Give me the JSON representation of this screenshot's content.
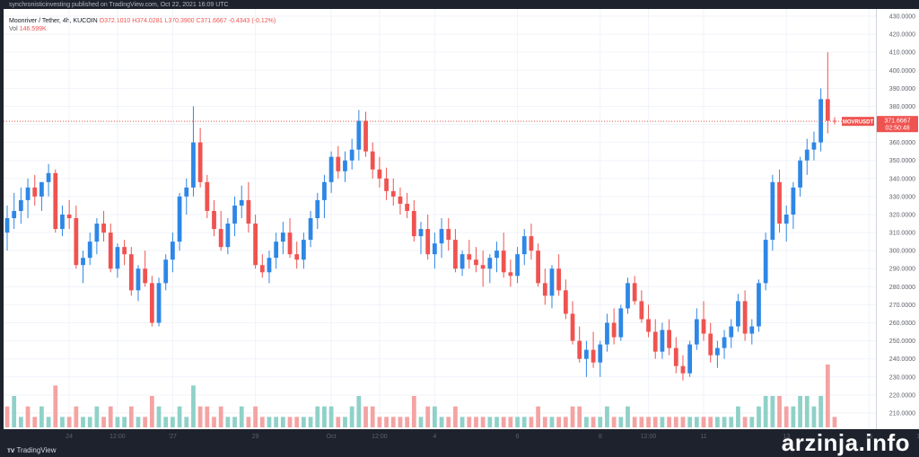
{
  "publisher_line": "synchronisticinvesting published on TradingView.com, Oct 22, 2021 16:09 UTC",
  "legend": {
    "symbol_line": "Moonriver / Tether, 4h, KUCOIN",
    "ohlc": "O372.1010 H374.0281 L370.3900 C371.6667 -0.4343 (-0.12%)",
    "vol_label": "Vol",
    "vol_value": "146.599K"
  },
  "brand": "TradingView",
  "watermark": "arzinja.info",
  "colors": {
    "up": "#2e87e6",
    "down": "#ef5350",
    "vol_up": "#8fd1c8",
    "vol_down": "#f4a3a3",
    "price_line": "#ef5350",
    "background": "#ffffff",
    "frame": "#1e222d"
  },
  "chart_data": {
    "type": "candlestick",
    "symbol": "MOVRUSDT",
    "interval": "4h",
    "exchange": "KUCOIN",
    "price_label": "371.6667",
    "countdown": "02:50:48",
    "last_price": 371.6667,
    "ylim": [
      205,
      430
    ],
    "y_ticks": [
      430,
      420,
      410,
      400,
      390,
      380,
      370,
      360,
      350,
      340,
      330,
      320,
      310,
      300,
      290,
      280,
      270,
      260,
      250,
      240,
      230,
      220,
      210
    ],
    "y_tick_labels": [
      "430.0000",
      "420.0000",
      "410.0000",
      "400.0000",
      "390.0000",
      "380.0000",
      "370.0000",
      "360.0000",
      "350.0000",
      "340.0000",
      "330.0000",
      "320.0000",
      "310.0000",
      "300.0000",
      "290.0000",
      "280.0000",
      "270.0000",
      "260.0000",
      "250.0000",
      "240.0000",
      "230.0000",
      "220.0000",
      "210.0000"
    ],
    "x_ticks": [
      {
        "label": "24",
        "index": 9
      },
      {
        "label": "12:00",
        "index": 16
      },
      {
        "label": "'27",
        "index": 24
      },
      {
        "label": "29",
        "index": 36
      },
      {
        "label": "Oct",
        "index": 47
      },
      {
        "label": "12:00",
        "index": 54
      },
      {
        "label": "4",
        "index": 62
      },
      {
        "label": "6",
        "index": 74
      },
      {
        "label": "8",
        "index": 86
      },
      {
        "label": "12:00",
        "index": 93
      },
      {
        "label": "11",
        "index": 101
      },
      {
        "label": "13",
        "index": 113
      },
      {
        "label": "15",
        "index": 125
      },
      {
        "label": "12:00",
        "index": 133
      },
      {
        "label": "18",
        "index": 142
      },
      {
        "label": "20",
        "index": 154
      },
      {
        "label": "22",
        "index": 166
      }
    ],
    "candles": [
      [
        310,
        325,
        300,
        318
      ],
      [
        318,
        332,
        312,
        322
      ],
      [
        322,
        335,
        315,
        328
      ],
      [
        328,
        340,
        318,
        335
      ],
      [
        335,
        342,
        325,
        330
      ],
      [
        330,
        338,
        322,
        338
      ],
      [
        338,
        348,
        330,
        343
      ],
      [
        343,
        345,
        310,
        312
      ],
      [
        312,
        325,
        308,
        320
      ],
      [
        320,
        328,
        312,
        318
      ],
      [
        318,
        325,
        290,
        292
      ],
      [
        292,
        300,
        282,
        296
      ],
      [
        296,
        310,
        292,
        305
      ],
      [
        305,
        318,
        298,
        315
      ],
      [
        315,
        322,
        305,
        310
      ],
      [
        310,
        315,
        288,
        290
      ],
      [
        290,
        304,
        285,
        302
      ],
      [
        302,
        306,
        292,
        298
      ],
      [
        298,
        302,
        275,
        278
      ],
      [
        278,
        292,
        272,
        290
      ],
      [
        290,
        300,
        280,
        282
      ],
      [
        282,
        286,
        258,
        260
      ],
      [
        260,
        285,
        258,
        282
      ],
      [
        282,
        298,
        278,
        295
      ],
      [
        295,
        310,
        288,
        305
      ],
      [
        305,
        332,
        300,
        330
      ],
      [
        330,
        340,
        320,
        335
      ],
      [
        335,
        380,
        330,
        360
      ],
      [
        360,
        368,
        335,
        338
      ],
      [
        338,
        342,
        318,
        322
      ],
      [
        322,
        328,
        308,
        312
      ],
      [
        312,
        322,
        300,
        302
      ],
      [
        302,
        318,
        298,
        315
      ],
      [
        315,
        330,
        308,
        325
      ],
      [
        325,
        336,
        318,
        328
      ],
      [
        328,
        338,
        310,
        315
      ],
      [
        315,
        320,
        290,
        292
      ],
      [
        292,
        298,
        285,
        288
      ],
      [
        288,
        300,
        282,
        296
      ],
      [
        296,
        310,
        290,
        305
      ],
      [
        305,
        316,
        298,
        310
      ],
      [
        310,
        318,
        296,
        298
      ],
      [
        298,
        305,
        290,
        295
      ],
      [
        295,
        310,
        290,
        306
      ],
      [
        306,
        322,
        302,
        318
      ],
      [
        318,
        332,
        312,
        328
      ],
      [
        328,
        342,
        318,
        338
      ],
      [
        338,
        355,
        332,
        352
      ],
      [
        352,
        358,
        340,
        344
      ],
      [
        344,
        355,
        338,
        350
      ],
      [
        350,
        362,
        345,
        356
      ],
      [
        356,
        378,
        350,
        372
      ],
      [
        372,
        377,
        352,
        355
      ],
      [
        355,
        360,
        340,
        345
      ],
      [
        345,
        352,
        335,
        340
      ],
      [
        340,
        346,
        328,
        333
      ],
      [
        333,
        340,
        325,
        330
      ],
      [
        330,
        335,
        320,
        326
      ],
      [
        326,
        332,
        318,
        322
      ],
      [
        322,
        328,
        305,
        308
      ],
      [
        308,
        316,
        298,
        312
      ],
      [
        312,
        320,
        295,
        298
      ],
      [
        298,
        310,
        290,
        304
      ],
      [
        304,
        318,
        296,
        312
      ],
      [
        312,
        318,
        300,
        306
      ],
      [
        306,
        312,
        288,
        290
      ],
      [
        290,
        300,
        286,
        298
      ],
      [
        298,
        306,
        290,
        295
      ],
      [
        295,
        302,
        288,
        292
      ],
      [
        292,
        300,
        280,
        290
      ],
      [
        290,
        298,
        282,
        296
      ],
      [
        296,
        305,
        288,
        300
      ],
      [
        300,
        310,
        285,
        288
      ],
      [
        288,
        295,
        280,
        286
      ],
      [
        286,
        302,
        282,
        298
      ],
      [
        298,
        312,
        292,
        308
      ],
      [
        308,
        315,
        295,
        300
      ],
      [
        300,
        304,
        280,
        282
      ],
      [
        282,
        290,
        270,
        275
      ],
      [
        275,
        292,
        268,
        290
      ],
      [
        290,
        298,
        275,
        278
      ],
      [
        278,
        284,
        262,
        265
      ],
      [
        265,
        272,
        248,
        250
      ],
      [
        250,
        258,
        238,
        240
      ],
      [
        240,
        250,
        230,
        245
      ],
      [
        245,
        255,
        235,
        238
      ],
      [
        238,
        250,
        230,
        248
      ],
      [
        248,
        265,
        244,
        260
      ],
      [
        260,
        268,
        248,
        252
      ],
      [
        252,
        270,
        250,
        268
      ],
      [
        268,
        285,
        265,
        282
      ],
      [
        282,
        286,
        270,
        272
      ],
      [
        272,
        278,
        260,
        262
      ],
      [
        262,
        270,
        252,
        255
      ],
      [
        255,
        262,
        240,
        244
      ],
      [
        244,
        260,
        240,
        256
      ],
      [
        256,
        262,
        242,
        246
      ],
      [
        246,
        252,
        232,
        236
      ],
      [
        236,
        242,
        228,
        232
      ],
      [
        232,
        250,
        230,
        248
      ],
      [
        248,
        268,
        245,
        262
      ],
      [
        262,
        272,
        250,
        254
      ],
      [
        254,
        260,
        238,
        242
      ],
      [
        242,
        250,
        235,
        246
      ],
      [
        246,
        256,
        240,
        252
      ],
      [
        252,
        262,
        246,
        258
      ],
      [
        258,
        276,
        255,
        272
      ],
      [
        272,
        278,
        250,
        254
      ],
      [
        254,
        262,
        248,
        258
      ],
      [
        258,
        284,
        255,
        282
      ],
      [
        282,
        310,
        278,
        306
      ],
      [
        306,
        342,
        300,
        338
      ],
      [
        338,
        345,
        310,
        315
      ],
      [
        315,
        325,
        305,
        320
      ],
      [
        320,
        338,
        312,
        335
      ],
      [
        335,
        352,
        330,
        350
      ],
      [
        350,
        362,
        342,
        356
      ],
      [
        356,
        366,
        350,
        360
      ],
      [
        360,
        390,
        355,
        384
      ],
      [
        384,
        410,
        365,
        372
      ],
      [
        372,
        374,
        370,
        371.6667
      ]
    ],
    "volume": [
      [
        2,
        "down"
      ],
      [
        3,
        "up"
      ],
      [
        1,
        "up"
      ],
      [
        2,
        "down"
      ],
      [
        1,
        "down"
      ],
      [
        2,
        "up"
      ],
      [
        1,
        "up"
      ],
      [
        4,
        "down"
      ],
      [
        1,
        "up"
      ],
      [
        1,
        "down"
      ],
      [
        2,
        "down"
      ],
      [
        1,
        "up"
      ],
      [
        1,
        "up"
      ],
      [
        2,
        "up"
      ],
      [
        1,
        "down"
      ],
      [
        2,
        "down"
      ],
      [
        1,
        "up"
      ],
      [
        1,
        "up"
      ],
      [
        2,
        "down"
      ],
      [
        1,
        "up"
      ],
      [
        1,
        "down"
      ],
      [
        3,
        "down"
      ],
      [
        2,
        "up"
      ],
      [
        1,
        "up"
      ],
      [
        1,
        "up"
      ],
      [
        2,
        "up"
      ],
      [
        1,
        "up"
      ],
      [
        4,
        "up"
      ],
      [
        2,
        "down"
      ],
      [
        2,
        "down"
      ],
      [
        1,
        "down"
      ],
      [
        2,
        "down"
      ],
      [
        1,
        "up"
      ],
      [
        1,
        "up"
      ],
      [
        2,
        "up"
      ],
      [
        1,
        "down"
      ],
      [
        2,
        "down"
      ],
      [
        1,
        "down"
      ],
      [
        1,
        "up"
      ],
      [
        1,
        "up"
      ],
      [
        1,
        "up"
      ],
      [
        1,
        "down"
      ],
      [
        1,
        "down"
      ],
      [
        1,
        "up"
      ],
      [
        1,
        "up"
      ],
      [
        2,
        "up"
      ],
      [
        2,
        "up"
      ],
      [
        2,
        "up"
      ],
      [
        1,
        "down"
      ],
      [
        1,
        "up"
      ],
      [
        2,
        "up"
      ],
      [
        3,
        "up"
      ],
      [
        2,
        "down"
      ],
      [
        2,
        "down"
      ],
      [
        1,
        "down"
      ],
      [
        1,
        "down"
      ],
      [
        1,
        "down"
      ],
      [
        1,
        "down"
      ],
      [
        1,
        "down"
      ],
      [
        3,
        "down"
      ],
      [
        1,
        "up"
      ],
      [
        2,
        "down"
      ],
      [
        2,
        "up"
      ],
      [
        1,
        "up"
      ],
      [
        1,
        "down"
      ],
      [
        2,
        "down"
      ],
      [
        1,
        "up"
      ],
      [
        1,
        "down"
      ],
      [
        1,
        "down"
      ],
      [
        1,
        "down"
      ],
      [
        1,
        "up"
      ],
      [
        1,
        "up"
      ],
      [
        1,
        "down"
      ],
      [
        1,
        "down"
      ],
      [
        1,
        "up"
      ],
      [
        1,
        "up"
      ],
      [
        1,
        "down"
      ],
      [
        2,
        "down"
      ],
      [
        1,
        "down"
      ],
      [
        1,
        "up"
      ],
      [
        1,
        "down"
      ],
      [
        1,
        "down"
      ],
      [
        2,
        "down"
      ],
      [
        2,
        "down"
      ],
      [
        1,
        "up"
      ],
      [
        1,
        "down"
      ],
      [
        1,
        "up"
      ],
      [
        2,
        "up"
      ],
      [
        1,
        "down"
      ],
      [
        1,
        "up"
      ],
      [
        2,
        "up"
      ],
      [
        1,
        "down"
      ],
      [
        1,
        "down"
      ],
      [
        1,
        "down"
      ],
      [
        1,
        "down"
      ],
      [
        1,
        "up"
      ],
      [
        1,
        "down"
      ],
      [
        1,
        "down"
      ],
      [
        1,
        "down"
      ],
      [
        1,
        "up"
      ],
      [
        1,
        "up"
      ],
      [
        1,
        "down"
      ],
      [
        1,
        "down"
      ],
      [
        1,
        "up"
      ],
      [
        1,
        "up"
      ],
      [
        1,
        "up"
      ],
      [
        2,
        "up"
      ],
      [
        1,
        "down"
      ],
      [
        1,
        "up"
      ],
      [
        2,
        "up"
      ],
      [
        3,
        "up"
      ],
      [
        3,
        "up"
      ],
      [
        3,
        "down"
      ],
      [
        2,
        "down"
      ],
      [
        2,
        "up"
      ],
      [
        3,
        "up"
      ],
      [
        3,
        "up"
      ],
      [
        2,
        "up"
      ],
      [
        3,
        "up"
      ],
      [
        6,
        "down"
      ],
      [
        1,
        "down"
      ]
    ]
  }
}
